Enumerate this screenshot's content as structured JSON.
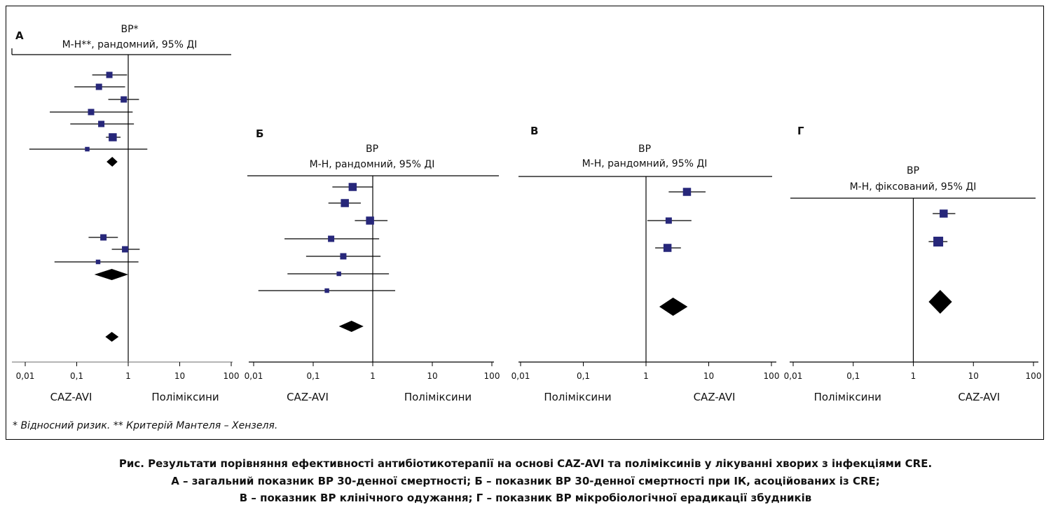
{
  "colors": {
    "study_marker": "#27277a",
    "pooled_diamond": "#000000",
    "lines": "#000000"
  },
  "footnote": "* Відносний ризик. ** Критерій Мантеля – Хензеля.",
  "caption": [
    "Рис. Результати порівняння ефективності антибіотикотерапії на основі CAZ-AVI та поліміксинів у лікуванні хворих з інфекціями CRE.",
    "А – загальний показник ВР 30-денної смертності; Б – показник ВР 30-денної смертності при ІК, асоційованих із CRE;",
    "В – показник ВР клінічного одужання; Г – показник ВР мікробіологічної ерадикації збудників"
  ],
  "chart_data": [
    {
      "type": "forest",
      "panel_label": "А",
      "title_line1": "ВР*",
      "title_line2": "М-Н**, рандомний, 95% ДІ",
      "x_scale": "log",
      "xlim": [
        0.01,
        100
      ],
      "tick_labels": [
        "0,01",
        "0,1",
        "1",
        "10",
        "100"
      ],
      "ticks": [
        0.01,
        0.1,
        1,
        10,
        100
      ],
      "left_label": "CAZ-AVI",
      "right_label": "Поліміксини",
      "rows": [
        {
          "type": "study",
          "rr": 0.43,
          "lo": 0.2,
          "hi": 0.95,
          "weight": 2
        },
        {
          "type": "study",
          "rr": 0.27,
          "lo": 0.09,
          "hi": 0.87,
          "weight": 2
        },
        {
          "type": "study",
          "rr": 0.82,
          "lo": 0.41,
          "hi": 1.62,
          "weight": 2
        },
        {
          "type": "study",
          "rr": 0.19,
          "lo": 0.03,
          "hi": 1.22,
          "weight": 2
        },
        {
          "type": "study",
          "rr": 0.3,
          "lo": 0.075,
          "hi": 1.29,
          "weight": 2
        },
        {
          "type": "study",
          "rr": 0.5,
          "lo": 0.37,
          "hi": 0.71,
          "weight": 3
        },
        {
          "type": "study",
          "rr": 0.16,
          "lo": 0.012,
          "hi": 2.35,
          "weight": 1
        },
        {
          "type": "pooled",
          "rr": 0.49,
          "lo": 0.38,
          "hi": 0.62
        },
        {
          "type": "study",
          "rr": 0.33,
          "lo": 0.17,
          "hi": 0.63,
          "weight": 2
        },
        {
          "type": "study",
          "rr": 0.87,
          "lo": 0.48,
          "hi": 1.67,
          "weight": 2
        },
        {
          "type": "study",
          "rr": 0.26,
          "lo": 0.037,
          "hi": 1.58,
          "weight": 1
        },
        {
          "type": "pooled",
          "rr": 0.48,
          "lo": 0.22,
          "hi": 1.0
        },
        {
          "type": "pooled",
          "rr": 0.48,
          "lo": 0.36,
          "hi": 0.65
        }
      ]
    },
    {
      "type": "forest",
      "panel_label": "Б",
      "title_line1": "ВР",
      "title_line2": "М-Н, рандомний, 95% ДІ",
      "x_scale": "log",
      "xlim": [
        0.01,
        100
      ],
      "tick_labels": [
        "0,01",
        "0,1",
        "1",
        "10",
        "100"
      ],
      "ticks": [
        0.01,
        0.1,
        1,
        10,
        100
      ],
      "left_label": "CAZ-AVI",
      "right_label": "Поліміксини",
      "rows": [
        {
          "type": "study",
          "rr": 0.46,
          "lo": 0.21,
          "hi": 1.0,
          "weight": 3
        },
        {
          "type": "study",
          "rr": 0.34,
          "lo": 0.18,
          "hi": 0.63,
          "weight": 3
        },
        {
          "type": "study",
          "rr": 0.9,
          "lo": 0.5,
          "hi": 1.77,
          "weight": 3
        },
        {
          "type": "study",
          "rr": 0.2,
          "lo": 0.033,
          "hi": 1.28,
          "weight": 2
        },
        {
          "type": "study",
          "rr": 0.32,
          "lo": 0.076,
          "hi": 1.35,
          "weight": 2
        },
        {
          "type": "study",
          "rr": 0.27,
          "lo": 0.037,
          "hi": 1.87,
          "weight": 1
        },
        {
          "type": "study",
          "rr": 0.17,
          "lo": 0.012,
          "hi": 2.38,
          "weight": 1
        },
        {
          "type": "pooled",
          "rr": 0.44,
          "lo": 0.27,
          "hi": 0.7
        }
      ]
    },
    {
      "type": "forest",
      "panel_label": "В",
      "title_line1": "ВР",
      "title_line2": "М-Н, рандомний, 95% ДІ",
      "x_scale": "log",
      "xlim": [
        0.01,
        100
      ],
      "tick_labels": [
        "0,01",
        "0,1",
        "1",
        "10",
        "100"
      ],
      "ticks": [
        0.01,
        0.1,
        1,
        10,
        100
      ],
      "left_label": "Поліміксини",
      "right_label": "CAZ-AVI",
      "rows": [
        {
          "type": "study",
          "rr": 4.5,
          "lo": 2.3,
          "hi": 8.9,
          "weight": 3
        },
        {
          "type": "study",
          "rr": 2.3,
          "lo": 1.05,
          "hi": 5.3,
          "weight": 2
        },
        {
          "type": "study",
          "rr": 2.2,
          "lo": 1.4,
          "hi": 3.6,
          "weight": 3
        },
        {
          "type": "pooled",
          "rr": 2.7,
          "lo": 1.63,
          "hi": 4.6
        }
      ]
    },
    {
      "type": "forest",
      "panel_label": "Г",
      "title_line1": "ВР",
      "title_line2": "М-Н, фіксований, 95% ДІ",
      "x_scale": "log",
      "xlim": [
        0.01,
        100
      ],
      "tick_labels": [
        "0,01",
        "0,1",
        "1",
        "10",
        "100"
      ],
      "ticks": [
        0.01,
        0.1,
        1,
        10,
        100
      ],
      "left_label": "Поліміксини",
      "right_label": "CAZ-AVI",
      "rows": [
        {
          "type": "study",
          "rr": 3.2,
          "lo": 2.1,
          "hi": 5.0,
          "weight": 3
        },
        {
          "type": "study",
          "rr": 2.6,
          "lo": 1.8,
          "hi": 3.7,
          "weight": 4
        },
        {
          "type": "pooled",
          "rr": 2.8,
          "lo": 1.8,
          "hi": 4.4
        }
      ]
    }
  ]
}
